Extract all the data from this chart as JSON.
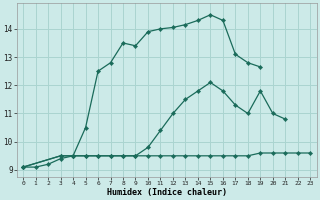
{
  "xlabel": "Humidex (Indice chaleur)",
  "bg_color": "#cceae8",
  "grid_color": "#aad4d0",
  "line_color": "#1a6b5a",
  "curve1_x": [
    0,
    1,
    2,
    3,
    4,
    5,
    6,
    7,
    8,
    9,
    10,
    11,
    12,
    13,
    14,
    15,
    16,
    17,
    18,
    19
  ],
  "curve1_y": [
    9.1,
    9.1,
    9.2,
    9.4,
    9.5,
    10.5,
    12.5,
    12.8,
    13.5,
    13.4,
    13.9,
    14.0,
    14.05,
    14.15,
    14.3,
    14.5,
    14.3,
    13.1,
    12.8,
    12.65
  ],
  "curve2_x": [
    0,
    3,
    4,
    5,
    6,
    7,
    8,
    9,
    10,
    11,
    12,
    13,
    14,
    15,
    16,
    17,
    18,
    19,
    20,
    21,
    22,
    23
  ],
  "curve2_y": [
    9.1,
    9.5,
    9.5,
    9.5,
    9.5,
    9.5,
    9.5,
    9.5,
    9.8,
    10.4,
    11.0,
    11.5,
    11.8,
    12.1,
    11.8,
    11.3,
    11.0,
    11.8,
    11.0,
    10.8,
    null,
    null
  ],
  "curve3_x": [
    0,
    3,
    4,
    5,
    6,
    7,
    8,
    9,
    10,
    11,
    12,
    13,
    14,
    15,
    16,
    17,
    18,
    19,
    20,
    21,
    22,
    23
  ],
  "curve3_y": [
    9.1,
    9.5,
    9.5,
    9.5,
    9.5,
    9.5,
    9.5,
    9.5,
    9.5,
    9.5,
    9.5,
    9.5,
    9.5,
    9.5,
    9.5,
    9.5,
    9.5,
    9.6,
    9.6,
    9.6,
    9.6,
    9.6
  ],
  "ylim": [
    8.75,
    14.9
  ],
  "xlim": [
    -0.5,
    23.5
  ],
  "yticks": [
    9,
    10,
    11,
    12,
    13,
    14
  ],
  "xticks": [
    0,
    1,
    2,
    3,
    4,
    5,
    6,
    7,
    8,
    9,
    10,
    11,
    12,
    13,
    14,
    15,
    16,
    17,
    18,
    19,
    20,
    21,
    22,
    23
  ]
}
